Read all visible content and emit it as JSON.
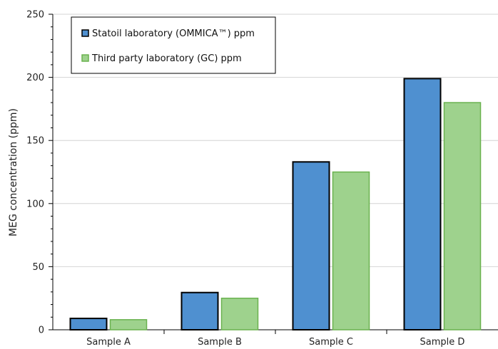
{
  "chart_data": {
    "type": "bar",
    "title": "",
    "xlabel": "",
    "ylabel": "MEG concentration (ppm)",
    "categories": [
      "Sample A",
      "Sample B",
      "Sample C",
      "Sample D"
    ],
    "series": [
      {
        "name": "Statoil laboratory (OMMICA™) ppm",
        "values": [
          9,
          29.5,
          133,
          199
        ],
        "color": "#4f90d0",
        "stroke": "#000000"
      },
      {
        "name": "Third party laboratory (GC) ppm",
        "values": [
          8,
          25,
          125,
          180
        ],
        "color": "#9ed28d",
        "stroke": "#6ab24f"
      }
    ],
    "ylim": [
      0,
      250
    ],
    "yticks": [
      0,
      50,
      100,
      150,
      200,
      250
    ],
    "grid": true,
    "legend_position": "top-left"
  }
}
